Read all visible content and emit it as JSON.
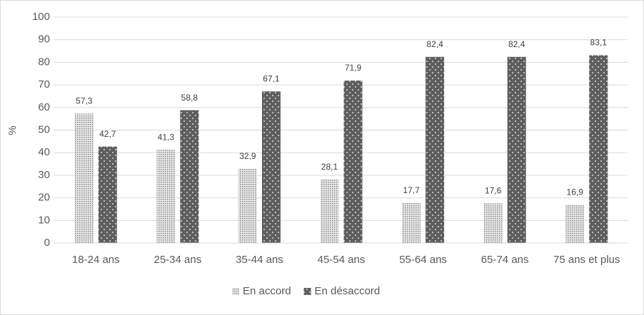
{
  "chart_data": {
    "type": "bar",
    "y_label": "%",
    "categories": [
      "18-24 ans",
      "25-34 ans",
      "35-44 ans",
      "45-54 ans",
      "55-64 ans",
      "65-74 ans",
      "75 ans et plus"
    ],
    "series": [
      {
        "name": "En accord",
        "color": "#d0d0d0",
        "values": [
          57.3,
          41.3,
          32.9,
          28.1,
          17.7,
          17.6,
          16.9
        ],
        "value_labels": [
          "57,3",
          "41,3",
          "32,9",
          "28,1",
          "17,7",
          "17,6",
          "16,9"
        ]
      },
      {
        "name": "En désaccord",
        "color": "#5e5e5e",
        "values": [
          42.7,
          58.8,
          67.1,
          71.9,
          82.4,
          82.4,
          83.1
        ],
        "value_labels": [
          "42,7",
          "58,8",
          "67,1",
          "71,9",
          "82,4",
          "82,4",
          "83,1"
        ]
      }
    ],
    "ylim": [
      0,
      100
    ],
    "yticks": [
      0,
      10,
      20,
      30,
      40,
      50,
      60,
      70,
      80,
      90,
      100
    ],
    "grid": true,
    "legend": "bottom"
  }
}
